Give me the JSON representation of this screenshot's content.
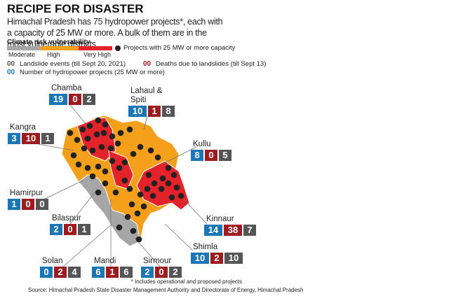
{
  "header": {
    "title": "RECIPE FOR DISASTER",
    "subtitle": "Himachal Pradesh has 75 hydropower projects*, each with a capacity of 25 MW or more. A bulk of them are in the most vulnerable districts"
  },
  "legend": {
    "scale_title": "Climate risk vulnerability",
    "levels": [
      "Moderate",
      "High",
      "Very High"
    ],
    "dots": "Projects with 25 MW or more capacity",
    "sample": "00",
    "landslides": "Landslide events (till Sept 20, 2021)",
    "deaths": "Deaths due to landslides (till Sept 13)",
    "projects": "Number of hydropower projects (25 MW or more)"
  },
  "districts": [
    {
      "name": "Chamba",
      "projects": 19,
      "deaths": 0,
      "landslides": 2
    },
    {
      "name": "Lahaul & Spiti",
      "projects": 10,
      "deaths": 1,
      "landslides": 8
    },
    {
      "name": "Kangra",
      "projects": 3,
      "deaths": 10,
      "landslides": 1
    },
    {
      "name": "Kullu",
      "projects": 8,
      "deaths": 0,
      "landslides": 5
    },
    {
      "name": "Hamirpur",
      "projects": 1,
      "deaths": 0,
      "landslides": 0
    },
    {
      "name": "Bilaspur",
      "projects": 2,
      "deaths": 0,
      "landslides": 1
    },
    {
      "name": "Kinnaur",
      "projects": 14,
      "deaths": 38,
      "landslides": 7
    },
    {
      "name": "Shimla",
      "projects": 10,
      "deaths": 2,
      "landslides": 10
    },
    {
      "name": "Solan",
      "projects": 0,
      "deaths": 2,
      "landslides": 4
    },
    {
      "name": "Mandi",
      "projects": 6,
      "deaths": 1,
      "landslides": 6
    },
    {
      "name": "Sirmour",
      "projects": 2,
      "deaths": 0,
      "landslides": 2
    }
  ],
  "footnote": "* Includes operational and proposed projects",
  "source": "Source: Himachal Pradesh State Disaster Management Authority and Directorate of Energy, Himachal Pradesh"
}
